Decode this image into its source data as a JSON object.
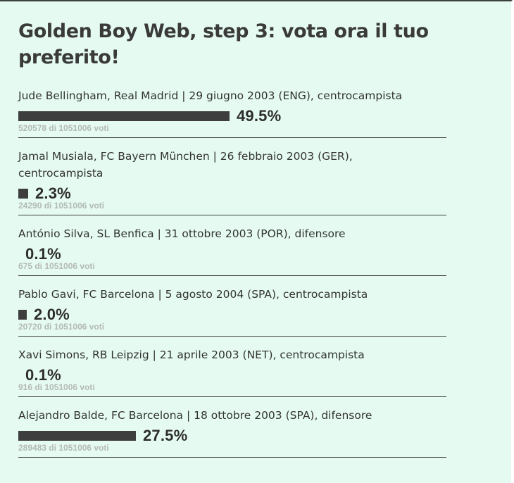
{
  "poll": {
    "title": "Golden Boy Web, step 3: vota ora il tuo preferito!",
    "options": [
      {
        "label": "Jude Bellingham, Real Madrid | 29 giugno 2003 (ENG), centrocampista",
        "percent": 49.5,
        "percent_text": "49.5%",
        "votes_text": "520578 di 1051006 voti"
      },
      {
        "label": "Jamal Musiala, FC Bayern München | 26 febbraio 2003 (GER), centrocampista",
        "percent": 2.3,
        "percent_text": "2.3%",
        "votes_text": "24290 di 1051006 voti"
      },
      {
        "label": "António Silva, SL Benfica | 31 ottobre 2003 (POR), difensore",
        "percent": 0.1,
        "percent_text": "0.1%",
        "votes_text": "675 di 1051006 voti"
      },
      {
        "label": "Pablo Gavi, FC Barcelona | 5 agosto 2004 (SPA), centrocampista",
        "percent": 2.0,
        "percent_text": "2.0%",
        "votes_text": "20720 di 1051006 voti"
      },
      {
        "label": "Xavi Simons, RB Leipzig | 21 aprile 2003 (NET), centrocampista",
        "percent": 0.1,
        "percent_text": "0.1%",
        "votes_text": "916 di 1051006 voti"
      },
      {
        "label": "Alejandro Balde, FC Barcelona | 18 ottobre 2003 (SPA), difensore",
        "percent": 27.5,
        "percent_text": "27.5%",
        "votes_text": "289483 di 1051006 voti"
      }
    ]
  },
  "colors": {
    "background": "#e5fbf1",
    "bar": "#3e3e3e",
    "vote_count": "#b3b9b6",
    "divider": "#3b3f3d"
  }
}
